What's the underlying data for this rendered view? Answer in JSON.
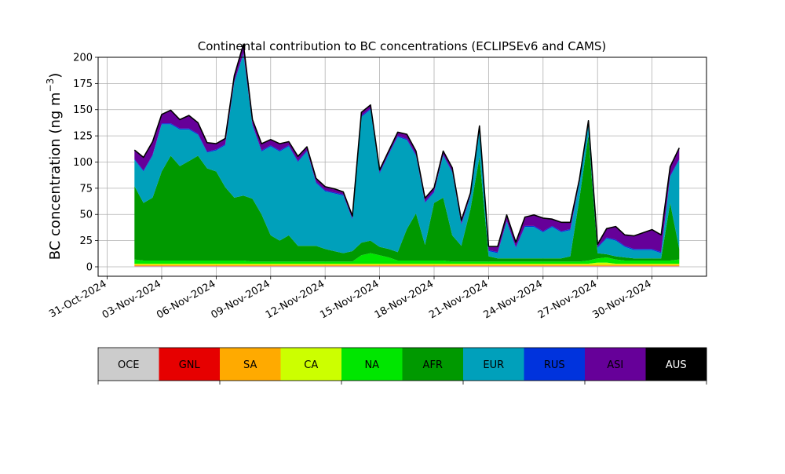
{
  "chart_data": {
    "type": "area",
    "stacked": true,
    "title": "Continental contribution to BC concentrations (ECLIPSEv6 and CAMS)",
    "ylabel": "BC concentration (ng m",
    "ylabel_superscript": "−3",
    "ylabel_close": ")",
    "xlabel": "",
    "ylim": [
      -9,
      200
    ],
    "xlim": [
      "2024-10-30T12:00",
      "2024-12-03T00:00"
    ],
    "grid": true,
    "yticks": [
      0,
      25,
      50,
      75,
      100,
      125,
      150,
      175,
      200
    ],
    "xticks": [
      "31-Oct-2024",
      "03-Nov-2024",
      "06-Nov-2024",
      "09-Nov-2024",
      "12-Nov-2024",
      "15-Nov-2024",
      "18-Nov-2024",
      "21-Nov-2024",
      "24-Nov-2024",
      "27-Nov-2024",
      "30-Nov-2024"
    ],
    "x": [
      "2024-11-01T12:00",
      "2024-11-02T00:00",
      "2024-11-02T12:00",
      "2024-11-03T00:00",
      "2024-11-03T12:00",
      "2024-11-04T00:00",
      "2024-11-04T12:00",
      "2024-11-05T00:00",
      "2024-11-05T12:00",
      "2024-11-06T00:00",
      "2024-11-06T12:00",
      "2024-11-07T00:00",
      "2024-11-07T12:00",
      "2024-11-08T00:00",
      "2024-11-08T12:00",
      "2024-11-09T00:00",
      "2024-11-09T12:00",
      "2024-11-10T00:00",
      "2024-11-10T12:00",
      "2024-11-11T00:00",
      "2024-11-11T12:00",
      "2024-11-12T00:00",
      "2024-11-12T12:00",
      "2024-11-13T00:00",
      "2024-11-13T12:00",
      "2024-11-14T00:00",
      "2024-11-14T12:00",
      "2024-11-15T00:00",
      "2024-11-15T12:00",
      "2024-11-16T00:00",
      "2024-11-16T12:00",
      "2024-11-17T00:00",
      "2024-11-17T12:00",
      "2024-11-18T00:00",
      "2024-11-18T12:00",
      "2024-11-19T00:00",
      "2024-11-19T12:00",
      "2024-11-20T00:00",
      "2024-11-20T12:00",
      "2024-11-21T00:00",
      "2024-11-21T12:00",
      "2024-11-22T00:00",
      "2024-11-22T12:00",
      "2024-11-23T00:00",
      "2024-11-23T12:00",
      "2024-11-24T00:00",
      "2024-11-24T12:00",
      "2024-11-25T00:00",
      "2024-11-25T12:00",
      "2024-11-26T00:00",
      "2024-11-26T12:00",
      "2024-11-27T00:00",
      "2024-11-27T12:00",
      "2024-11-28T00:00",
      "2024-11-28T12:00",
      "2024-11-29T00:00",
      "2024-11-29T12:00",
      "2024-11-30T00:00",
      "2024-11-30T12:00",
      "2024-12-01T00:00",
      "2024-12-01T12:00"
    ],
    "series": [
      {
        "name": "OCE",
        "color": "#cccccc",
        "values": [
          0.5,
          0.5,
          0.5,
          0.5,
          0.5,
          0.5,
          0.5,
          0.5,
          0.5,
          0.5,
          0.5,
          0.5,
          0.5,
          0.5,
          0.5,
          0.5,
          0.5,
          0.5,
          0.5,
          0.5,
          0.5,
          0.5,
          0.5,
          0.5,
          0.5,
          0.5,
          0.5,
          0.5,
          0.5,
          0.5,
          0.5,
          0.5,
          0.5,
          0.5,
          0.5,
          0.5,
          0.5,
          0.5,
          0.5,
          0.5,
          0.5,
          0.5,
          0.5,
          0.5,
          0.5,
          0.5,
          0.5,
          0.5,
          0.5,
          0.5,
          0.5,
          0.5,
          0.5,
          0.5,
          0.5,
          0.5,
          0.5,
          0.5,
          0.5,
          0.5,
          0.5
        ]
      },
      {
        "name": "GNL",
        "color": "#e60000",
        "values": [
          0.5,
          0.5,
          0.5,
          0.5,
          0.5,
          0.5,
          0.5,
          0.5,
          0.5,
          0.5,
          0.5,
          0.5,
          0.5,
          0.5,
          0.5,
          0.5,
          0.5,
          0.5,
          0.5,
          0.5,
          0.5,
          0.5,
          0.5,
          0.5,
          0.5,
          0.5,
          0.5,
          0.5,
          0.5,
          0.5,
          0.5,
          0.5,
          0.5,
          0.5,
          0.5,
          0.5,
          0.5,
          0.5,
          0.5,
          0.5,
          0.5,
          0.5,
          0.5,
          0.5,
          0.5,
          0.5,
          0.5,
          0.5,
          0.5,
          0.5,
          0.5,
          0.5,
          0.5,
          0.5,
          0.5,
          0.5,
          0.5,
          0.5,
          0.5,
          0.5,
          0.5
        ]
      },
      {
        "name": "SA",
        "color": "#ffaa00",
        "values": [
          1,
          1,
          1,
          1,
          1,
          1,
          1,
          1,
          1,
          1,
          1,
          1,
          1,
          1,
          1,
          1,
          1,
          1,
          1,
          1,
          1,
          1,
          1,
          1,
          1,
          1,
          1,
          1,
          1,
          1,
          1,
          1,
          1,
          1,
          1,
          1,
          1,
          1,
          1,
          1,
          1,
          1,
          1,
          1,
          1,
          1,
          1,
          1,
          1,
          1,
          1,
          1,
          1,
          1,
          1,
          1,
          1,
          1,
          1,
          1,
          1
        ]
      },
      {
        "name": "CA",
        "color": "#ccff00",
        "values": [
          1,
          1,
          1,
          1,
          1,
          1,
          1,
          1,
          1,
          1,
          1,
          1,
          1,
          1,
          1,
          1,
          1,
          1,
          1,
          1,
          1,
          1,
          1,
          1,
          1,
          1,
          1,
          1,
          1,
          1,
          1,
          1,
          1,
          1,
          1,
          1,
          1,
          1,
          1,
          1,
          1,
          1,
          1,
          1,
          1,
          1,
          1,
          1,
          1,
          1,
          1,
          2,
          2,
          1,
          1,
          1,
          1,
          1,
          1,
          1,
          1
        ]
      },
      {
        "name": "NA",
        "color": "#00e600",
        "values": [
          4,
          3,
          3,
          3,
          3,
          3,
          3,
          3,
          3,
          3,
          3,
          3,
          3,
          2,
          2,
          2,
          2,
          2,
          2,
          2,
          2,
          2,
          2,
          2,
          2,
          8,
          10,
          8,
          6,
          3,
          3,
          3,
          3,
          3,
          3,
          2,
          2,
          2,
          2,
          2,
          2,
          2,
          2,
          2,
          2,
          2,
          2,
          2,
          2,
          2,
          3,
          4,
          5,
          4,
          3,
          3,
          3,
          3,
          3,
          3,
          4
        ]
      },
      {
        "name": "AFR",
        "color": "#009900",
        "values": [
          70,
          55,
          60,
          85,
          100,
          90,
          95,
          100,
          88,
          85,
          70,
          60,
          62,
          60,
          45,
          25,
          20,
          25,
          15,
          15,
          15,
          12,
          10,
          8,
          10,
          12,
          12,
          8,
          8,
          8,
          30,
          45,
          15,
          55,
          60,
          25,
          15,
          50,
          100,
          5,
          3,
          3,
          3,
          3,
          3,
          3,
          3,
          3,
          5,
          60,
          120,
          5,
          3,
          3,
          3,
          2,
          2,
          2,
          2,
          55,
          10
        ]
      },
      {
        "name": "EUR",
        "color": "#00a0bb",
        "values": [
          25,
          30,
          40,
          45,
          30,
          35,
          30,
          20,
          15,
          20,
          40,
          110,
          135,
          70,
          60,
          85,
          85,
          85,
          80,
          90,
          60,
          55,
          55,
          55,
          30,
          120,
          125,
          70,
          90,
          110,
          85,
          55,
          40,
          10,
          40,
          60,
          20,
          12,
          25,
          5,
          5,
          35,
          10,
          30,
          30,
          25,
          30,
          25,
          25,
          15,
          10,
          5,
          15,
          15,
          10,
          8,
          8,
          8,
          5,
          25,
          85
        ]
      },
      {
        "name": "RUS",
        "color": "#0033dd",
        "values": [
          1,
          1,
          1,
          1,
          1,
          1,
          1,
          1,
          1,
          1,
          1,
          1,
          1,
          1,
          1,
          1,
          1,
          1,
          1,
          1,
          1,
          1,
          1,
          1,
          1,
          1,
          1,
          1,
          1,
          1,
          1,
          1,
          1,
          1,
          1,
          1,
          1,
          1,
          1,
          1,
          1,
          1,
          1,
          1,
          1,
          1,
          1,
          1,
          1,
          1,
          1,
          1,
          1,
          1,
          1,
          1,
          1,
          1,
          1,
          1,
          1
        ]
      },
      {
        "name": "ASI",
        "color": "#660099",
        "values": [
          8,
          12,
          12,
          8,
          12,
          8,
          12,
          10,
          8,
          5,
          5,
          5,
          8,
          4,
          6,
          5,
          6,
          3,
          4,
          3,
          3,
          3,
          3,
          2,
          2,
          3,
          3,
          2,
          2,
          3,
          4,
          3,
          3,
          3,
          3,
          3,
          3,
          2,
          3,
          3,
          5,
          5,
          4,
          8,
          10,
          12,
          6,
          8,
          6,
          2,
          2,
          2,
          8,
          12,
          10,
          12,
          15,
          18,
          16,
          8,
          10
        ]
      },
      {
        "name": "AUS",
        "color": "#000000",
        "values": [
          0.5,
          0.5,
          0.5,
          0.5,
          0.5,
          0.5,
          0.5,
          0.5,
          0.5,
          0.5,
          0.5,
          0.5,
          0.5,
          0.5,
          0.5,
          0.5,
          0.5,
          0.5,
          0.5,
          0.5,
          0.5,
          0.5,
          0.5,
          0.5,
          0.5,
          0.5,
          0.5,
          0.5,
          0.5,
          0.5,
          0.5,
          0.5,
          0.5,
          0.5,
          0.5,
          0.5,
          0.5,
          0.5,
          0.5,
          0.5,
          0.5,
          0.5,
          0.5,
          0.5,
          0.5,
          0.5,
          0.5,
          0.5,
          0.5,
          0.5,
          0.5,
          0.5,
          0.5,
          0.5,
          0.5,
          0.5,
          0.5,
          0.5,
          0.5,
          0.5,
          0.5
        ]
      }
    ],
    "legend": {
      "placement": "bottom colorbar",
      "labels": [
        "OCE",
        "GNL",
        "SA",
        "CA",
        "NA",
        "AFR",
        "EUR",
        "RUS",
        "ASI",
        "AUS"
      ],
      "label_colors": [
        "#000000",
        "#000000",
        "#000000",
        "#000000",
        "#000000",
        "#000000",
        "#000000",
        "#000000",
        "#000000",
        "#ffffff"
      ]
    }
  }
}
